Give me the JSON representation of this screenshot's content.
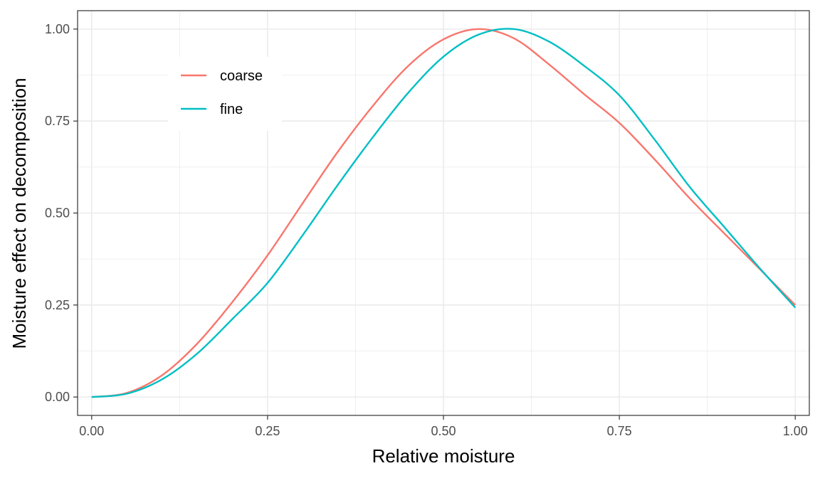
{
  "chart_data": {
    "type": "line",
    "title": "",
    "xlabel": "Relative moisture",
    "ylabel": "Moisture effect on decomposition",
    "xlim": [
      -0.02,
      1.02
    ],
    "ylim": [
      -0.05,
      1.05
    ],
    "grid": true,
    "legend_position": "top-left",
    "x_ticks": [
      0,
      0.25,
      0.5,
      0.75,
      1
    ],
    "x_tick_labels": [
      "0.00",
      "0.25",
      "0.50",
      "0.75",
      "1.00"
    ],
    "y_ticks": [
      0,
      0.25,
      0.5,
      0.75,
      1
    ],
    "y_tick_labels": [
      "0.00",
      "0.25",
      "0.50",
      "0.75",
      "1.00"
    ],
    "x": [
      0,
      0.05,
      0.1,
      0.15,
      0.2,
      0.25,
      0.3,
      0.35,
      0.4,
      0.45,
      0.5,
      0.55,
      0.6,
      0.65,
      0.7,
      0.75,
      0.8,
      0.85,
      0.9,
      0.95,
      1
    ],
    "series": [
      {
        "name": "coarse",
        "color": "#F8766D",
        "values": [
          0,
          0.011,
          0.059,
          0.145,
          0.258,
          0.385,
          0.527,
          0.667,
          0.792,
          0.9,
          0.972,
          1.0,
          0.975,
          0.904,
          0.823,
          0.745,
          0.646,
          0.54,
          0.443,
          0.347,
          0.25
        ]
      },
      {
        "name": "fine",
        "color": "#00BFC4",
        "values": [
          0,
          0.009,
          0.048,
          0.118,
          0.212,
          0.31,
          0.44,
          0.577,
          0.707,
          0.827,
          0.925,
          0.985,
          1.0,
          0.966,
          0.9,
          0.82,
          0.7,
          0.571,
          0.46,
          0.349,
          0.243
        ]
      }
    ]
  }
}
